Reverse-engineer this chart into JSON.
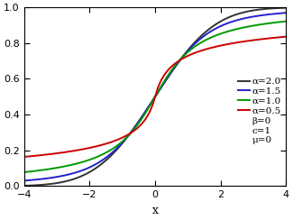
{
  "title": "",
  "xlabel": "x",
  "ylabel": "",
  "xlim": [
    -4,
    4
  ],
  "ylim": [
    0.0,
    1.0
  ],
  "xticks": [
    -4,
    -2,
    0,
    2,
    4
  ],
  "yticks": [
    0.0,
    0.2,
    0.4,
    0.6,
    0.8,
    1.0
  ],
  "series": [
    {
      "alpha": 2.0,
      "beta": 0,
      "c": 1,
      "mu": 0,
      "color": "#333333",
      "label": "α=2.0",
      "lw": 1.4
    },
    {
      "alpha": 1.5,
      "beta": 0,
      "c": 1,
      "mu": 0,
      "color": "#2222cc",
      "label": "α=1.5",
      "lw": 1.4
    },
    {
      "alpha": 1.0,
      "beta": 0,
      "c": 1,
      "mu": 0,
      "color": "#009900",
      "label": "α=1.0",
      "lw": 1.4
    },
    {
      "alpha": 0.5,
      "beta": 0,
      "c": 1,
      "mu": 0,
      "color": "#cc0000",
      "label": "α=0.5",
      "lw": 1.4
    }
  ],
  "legend_labels": [
    "α=2.0",
    "α=1.5",
    "α=1.0",
    "α=0.5"
  ],
  "legend_extra": [
    "β=0",
    "c=1",
    "μ=0"
  ],
  "background_color": "#ffffff",
  "legend_fontsize": 7.5,
  "tick_fontsize": 8,
  "label_fontsize": 9
}
